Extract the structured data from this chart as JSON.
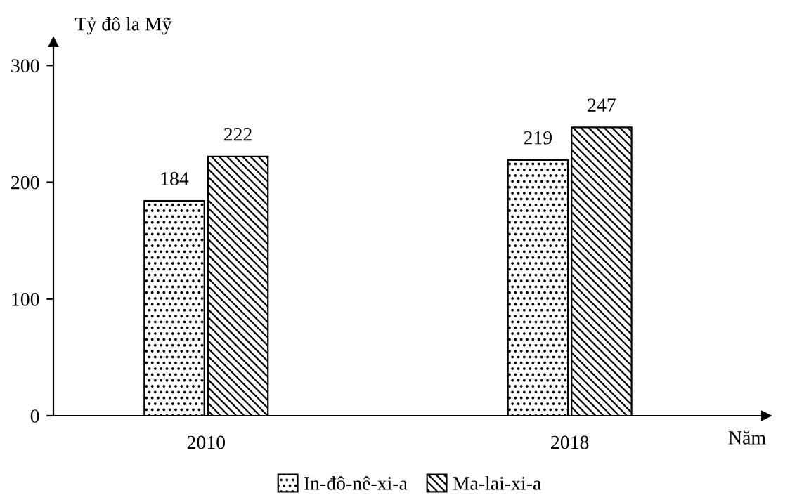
{
  "chart_data": {
    "type": "bar",
    "ylabel": "Tỷ đô la Mỹ",
    "xlabel": "Năm",
    "categories": [
      "2010",
      "2018"
    ],
    "series": [
      {
        "name": "In-đô-nê-xi-a",
        "color": "#000000",
        "values": [
          184,
          219
        ]
      },
      {
        "name": "Ma-lai-xi-a",
        "color": "#000000",
        "values": [
          222,
          247
        ]
      }
    ],
    "ylim": [
      0,
      320
    ],
    "yticks": [
      0,
      100,
      200,
      300
    ],
    "grid": false,
    "legend": "bottom",
    "data_labels": true
  }
}
